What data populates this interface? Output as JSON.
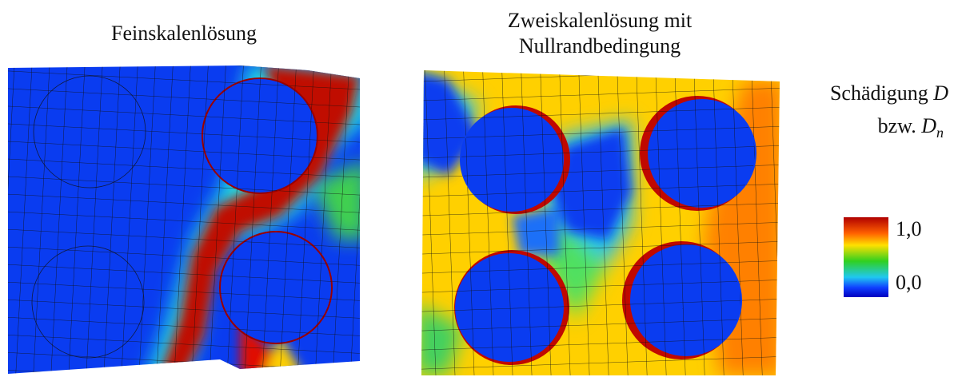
{
  "panels": [
    {
      "title_lines": [
        "Feinskalenlösung"
      ]
    },
    {
      "title_lines": [
        "Zweiskalenlösung mit",
        "Nullrandbedingung"
      ]
    }
  ],
  "colorbar": {
    "label": "Schädigung",
    "symbol": "D",
    "connector": "bzw.",
    "symbol2": "D",
    "subscript": "n",
    "tick_max": "1,0",
    "tick_min": "0,0"
  }
}
